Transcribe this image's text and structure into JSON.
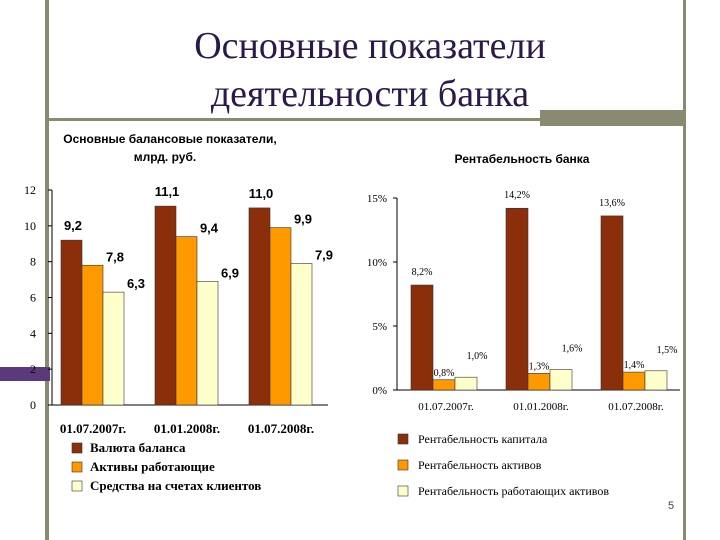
{
  "slide": {
    "title_line1": "Основные показатели",
    "title_line2": "деятельности банка",
    "page_number": "5"
  },
  "colors": {
    "dark": "#8B2E0A",
    "orange": "#FF9900",
    "cream": "#FFFFCC",
    "frame": "#8a8a70",
    "title": "#2a1a4a"
  },
  "chart_data": [
    {
      "type": "bar",
      "title": "Основные балансовые показатели, млрд. руб.",
      "title_line1": "Основные балансовые показатели,",
      "title_line2": "млрд. руб.",
      "categories": [
        "01.07.2007г.",
        "01.01.2008г.",
        "01.07.2008г."
      ],
      "ylim": [
        0,
        12
      ],
      "yticks": [
        "0",
        "2",
        "4",
        "6",
        "8",
        "10",
        "12"
      ],
      "legend_position": "bottom",
      "series": [
        {
          "name": "Валюта баланса",
          "values": [
            9.2,
            11.1,
            11.0
          ],
          "labels": [
            "9,2",
            "11,1",
            "11,0"
          ],
          "color": "#8B2E0A"
        },
        {
          "name": "Активы работающие",
          "values": [
            7.8,
            9.4,
            9.9
          ],
          "labels": [
            "7,8",
            "9,4",
            "9,9"
          ],
          "color": "#FF9900"
        },
        {
          "name": "Средства на счетах клиентов",
          "values": [
            6.3,
            6.9,
            7.9
          ],
          "labels": [
            "6,3",
            "6,9",
            "7,9"
          ],
          "color": "#FFFFCC"
        }
      ]
    },
    {
      "type": "bar",
      "title": "Рентабельность банка",
      "categories": [
        "01.07.2007г.",
        "01.01.2008г.",
        "01.07.2008г."
      ],
      "ylim": [
        0,
        15
      ],
      "yticks": [
        "0%",
        "5%",
        "10%",
        "15%"
      ],
      "legend_position": "bottom",
      "series": [
        {
          "name": "Рентабельность капитала",
          "values": [
            8.2,
            14.2,
            13.6
          ],
          "labels": [
            "8,2%",
            "14,2%",
            "13,6%"
          ],
          "color": "#8B2E0A"
        },
        {
          "name": "Рентабельность активов",
          "values": [
            0.8,
            1.3,
            1.4
          ],
          "labels": [
            "0,8%",
            "1,3%",
            "1,4%"
          ],
          "color": "#FF9900"
        },
        {
          "name": "Рентабельность работающих активов",
          "values": [
            1.0,
            1.6,
            1.5
          ],
          "labels": [
            "1,0%",
            "1,6%",
            "1,5%"
          ],
          "color": "#FFFFCC"
        }
      ]
    }
  ]
}
